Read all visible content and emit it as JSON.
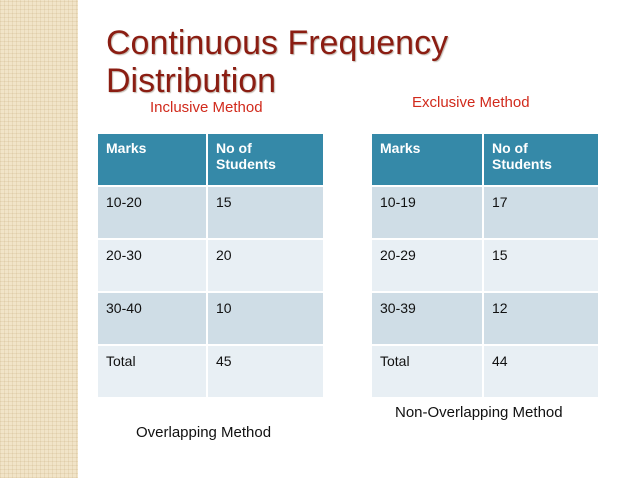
{
  "title": {
    "line1": "Continuous Frequency",
    "line2": "Distribution"
  },
  "inclusive": {
    "heading": "Inclusive Method",
    "columns": [
      "Marks",
      "No of Students"
    ],
    "rows": [
      [
        "10-20",
        "15"
      ],
      [
        "20-30",
        "20"
      ],
      [
        "30-40",
        "10"
      ],
      [
        "Total",
        "45"
      ]
    ],
    "caption": "Overlapping Method"
  },
  "exclusive": {
    "heading": "Exclusive Method",
    "columns": [
      "Marks",
      "No of Students"
    ],
    "rows": [
      [
        "10-19",
        "17"
      ],
      [
        "20-29",
        "15"
      ],
      [
        "30-39",
        "12"
      ],
      [
        "Total",
        "44"
      ]
    ],
    "caption": "Non-Overlapping Method"
  },
  "colors": {
    "title": "#8b1d12",
    "heading": "#d12a1c",
    "table_header": "#3589a8",
    "row_dark": "#cfdde6",
    "row_light": "#e8eff4",
    "side_strip": "#f1e4c8"
  }
}
